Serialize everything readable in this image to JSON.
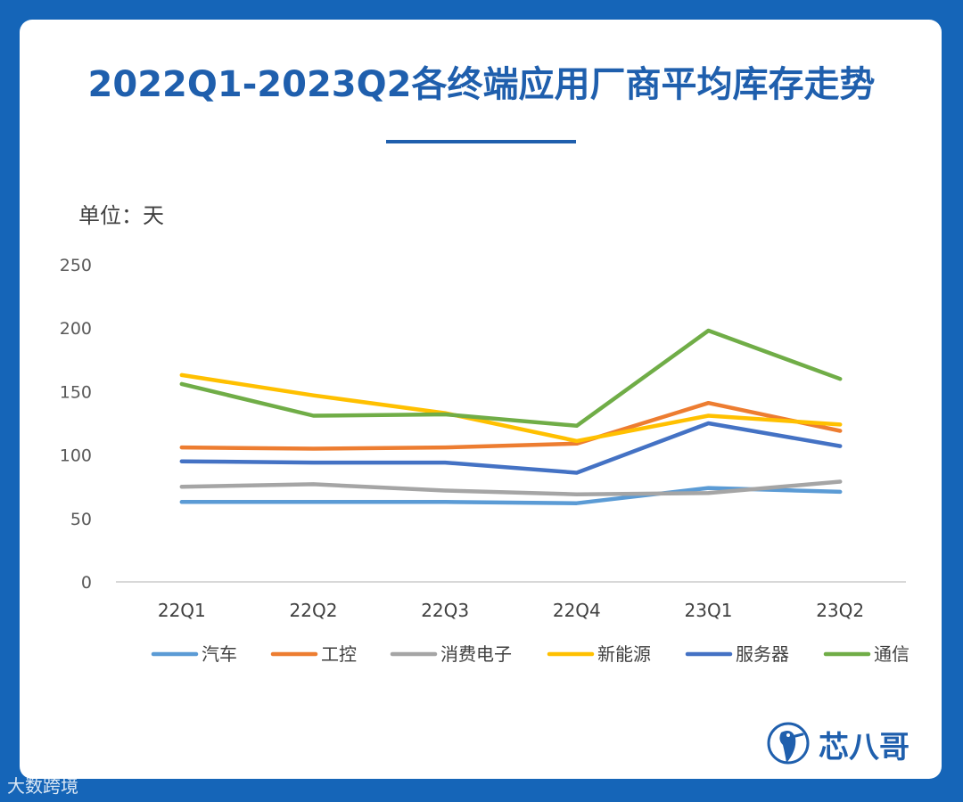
{
  "header": {
    "title": "2022Q1-2023Q2各终端应用厂商平均库存走势",
    "unit_label": "单位：天"
  },
  "brand": {
    "name": "芯八哥"
  },
  "footer": {
    "watermark": "大数跨境"
  },
  "colors": {
    "background": "#1565b8",
    "title": "#1f5fad",
    "axis": "#cccccc"
  },
  "chart_data": {
    "type": "line",
    "categories": [
      "22Q1",
      "22Q2",
      "22Q3",
      "22Q4",
      "23Q1",
      "23Q2"
    ],
    "yticks": [
      0,
      50,
      100,
      150,
      200,
      250
    ],
    "ylim": [
      0,
      250
    ],
    "grid": false,
    "legend_position": "bottom",
    "series": [
      {
        "name": "汽车",
        "color": "#5b9bd5",
        "values": [
          63,
          63,
          63,
          62,
          74,
          71
        ]
      },
      {
        "name": "工控",
        "color": "#ed7d31",
        "values": [
          106,
          105,
          106,
          109,
          141,
          119
        ]
      },
      {
        "name": "消费电子",
        "color": "#a5a5a5",
        "values": [
          75,
          77,
          72,
          69,
          70,
          79
        ]
      },
      {
        "name": "新能源",
        "color": "#ffc000",
        "values": [
          163,
          147,
          133,
          111,
          131,
          124
        ]
      },
      {
        "name": "服务器",
        "color": "#4472c4",
        "values": [
          95,
          94,
          94,
          86,
          125,
          107
        ]
      },
      {
        "name": "通信",
        "color": "#70ad47",
        "values": [
          156,
          131,
          132,
          123,
          198,
          160
        ]
      }
    ]
  }
}
